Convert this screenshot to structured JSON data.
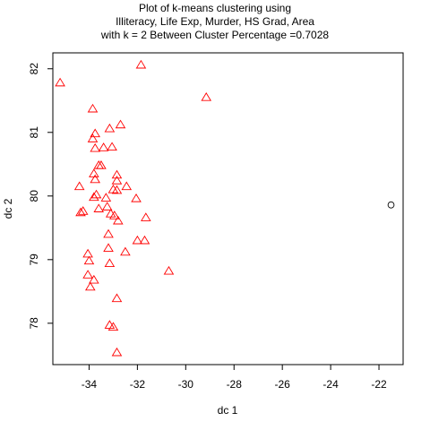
{
  "chart_data": {
    "type": "scatter",
    "title_lines": [
      "Plot of k-means clustering using",
      "Illiteracy, Life Exp, Murder, HS Grad, Area",
      "with  k = 2 Between Cluster Percentage =0.7028"
    ],
    "xlabel": "dc 1",
    "ylabel": "dc 2",
    "xlim": [
      -35.5,
      -21.0
    ],
    "ylim": [
      77.35,
      82.25
    ],
    "xticks": [
      -34,
      -32,
      -30,
      -28,
      -26,
      -24,
      -22
    ],
    "yticks": [
      78,
      79,
      80,
      81,
      82
    ],
    "grid": false,
    "series": [
      {
        "marker": "triangle",
        "color": "#ff0000",
        "points": [
          [
            -35.2,
            81.78
          ],
          [
            -31.85,
            82.06
          ],
          [
            -29.15,
            81.55
          ],
          [
            -33.85,
            81.37
          ],
          [
            -33.15,
            81.06
          ],
          [
            -32.7,
            81.12
          ],
          [
            -33.75,
            80.98
          ],
          [
            -33.85,
            80.9
          ],
          [
            -33.4,
            80.76
          ],
          [
            -33.05,
            80.77
          ],
          [
            -33.75,
            80.75
          ],
          [
            -33.6,
            80.48
          ],
          [
            -33.5,
            80.48
          ],
          [
            -32.85,
            80.33
          ],
          [
            -33.8,
            80.35
          ],
          [
            -33.75,
            80.26
          ],
          [
            -32.85,
            80.24
          ],
          [
            -32.45,
            80.15
          ],
          [
            -34.4,
            80.15
          ],
          [
            -33.0,
            80.1
          ],
          [
            -32.85,
            80.09
          ],
          [
            -33.7,
            80.02
          ],
          [
            -33.8,
            79.98
          ],
          [
            -33.3,
            79.97
          ],
          [
            -32.05,
            79.96
          ],
          [
            -33.25,
            79.83
          ],
          [
            -33.6,
            79.8
          ],
          [
            -34.35,
            79.74
          ],
          [
            -34.25,
            79.76
          ],
          [
            -33.1,
            79.72
          ],
          [
            -32.95,
            79.69
          ],
          [
            -32.8,
            79.61
          ],
          [
            -31.65,
            79.66
          ],
          [
            -33.2,
            79.4
          ],
          [
            -32.0,
            79.3
          ],
          [
            -31.7,
            79.3
          ],
          [
            -33.2,
            79.18
          ],
          [
            -32.5,
            79.12
          ],
          [
            -34.05,
            79.09
          ],
          [
            -34.0,
            78.98
          ],
          [
            -33.15,
            78.94
          ],
          [
            -30.7,
            78.82
          ],
          [
            -34.05,
            78.76
          ],
          [
            -33.8,
            78.68
          ],
          [
            -33.95,
            78.57
          ],
          [
            -32.85,
            78.39
          ],
          [
            -33.15,
            77.97
          ],
          [
            -33.0,
            77.94
          ],
          [
            -32.85,
            77.54
          ]
        ]
      },
      {
        "marker": "circle",
        "color": "#000000",
        "points": [
          [
            -21.5,
            79.86
          ]
        ]
      }
    ]
  }
}
